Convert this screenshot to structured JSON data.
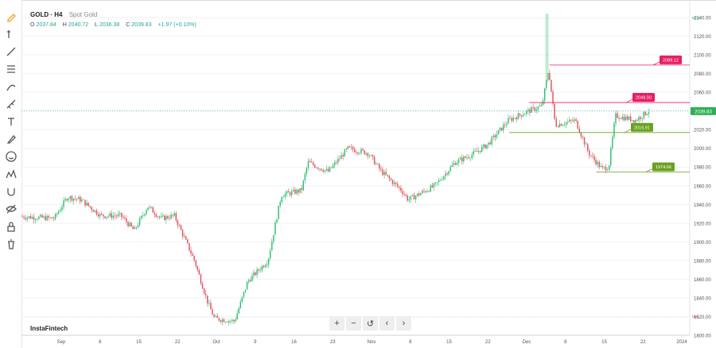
{
  "legend": {
    "symbol": "GOLD · H4",
    "description": "Spot Gold"
  },
  "ohlc": {
    "o_label": "O",
    "o_value": "2037.84",
    "h_label": "H",
    "h_value": "2040.72",
    "l_label": "L",
    "l_value": "2036.38",
    "c_label": "C",
    "c_value": "2039.83",
    "change": "+1.97 (+0.10%)"
  },
  "watermark": "InstaFintech",
  "nav": {
    "zoom_in": "+",
    "zoom_out": "−",
    "reset": "↺",
    "back": "‹",
    "forward": "›"
  },
  "toolbar_icons": [
    "pencil-icon",
    "cursor-icon",
    "trend-line-icon",
    "fibonacci-icon",
    "brush-icon",
    "measure-icon",
    "text-icon",
    "pen-icon",
    "emoji-icon",
    "pattern-icon",
    "magnet-icon",
    "hide-drawings-icon",
    "lock-icon",
    "trash-icon"
  ],
  "colors": {
    "up": "#26a69a",
    "up_fill": "#2fbf71",
    "down": "#e0525d",
    "resistance": "#e91e63",
    "support": "#6aa121",
    "current": "#26a69a",
    "grid": "#f2f2f2",
    "axis_text": "#555555"
  },
  "chart_data": {
    "type": "candlestick",
    "ylim": [
      1800,
      2140
    ],
    "yticks": [
      1800,
      1820,
      1840,
      1860,
      1880,
      1900,
      1920,
      1940,
      1960,
      1980,
      2000,
      2020,
      2040,
      2060,
      2080,
      2100,
      2120,
      2140
    ],
    "xticks": [
      "Sep",
      "8",
      "15",
      "22",
      "Oct",
      "9",
      "16",
      "23",
      "Nov",
      "8",
      "15",
      "22",
      "Dec",
      "8",
      "15",
      "22",
      "2024"
    ],
    "xlabel": "",
    "ylabel": "",
    "max_marker": "MAX",
    "min_marker": "MIN",
    "path": [
      {
        "t": 0.0,
        "v": 1927
      },
      {
        "t": 0.05,
        "v": 1925
      },
      {
        "t": 0.07,
        "v": 1948
      },
      {
        "t": 0.09,
        "v": 1945
      },
      {
        "t": 0.12,
        "v": 1928
      },
      {
        "t": 0.15,
        "v": 1928
      },
      {
        "t": 0.17,
        "v": 1912
      },
      {
        "t": 0.19,
        "v": 1938
      },
      {
        "t": 0.21,
        "v": 1925
      },
      {
        "t": 0.23,
        "v": 1928
      },
      {
        "t": 0.26,
        "v": 1880
      },
      {
        "t": 0.28,
        "v": 1835
      },
      {
        "t": 0.29,
        "v": 1818
      },
      {
        "t": 0.32,
        "v": 1815
      },
      {
        "t": 0.34,
        "v": 1858
      },
      {
        "t": 0.37,
        "v": 1880
      },
      {
        "t": 0.39,
        "v": 1950
      },
      {
        "t": 0.42,
        "v": 1955
      },
      {
        "t": 0.43,
        "v": 1985
      },
      {
        "t": 0.46,
        "v": 1975
      },
      {
        "t": 0.49,
        "v": 2000
      },
      {
        "t": 0.52,
        "v": 1995
      },
      {
        "t": 0.54,
        "v": 1975
      },
      {
        "t": 0.57,
        "v": 1955
      },
      {
        "t": 0.58,
        "v": 1945
      },
      {
        "t": 0.62,
        "v": 1960
      },
      {
        "t": 0.65,
        "v": 1985
      },
      {
        "t": 0.68,
        "v": 1995
      },
      {
        "t": 0.7,
        "v": 2005
      },
      {
        "t": 0.73,
        "v": 2030
      },
      {
        "t": 0.76,
        "v": 2040
      },
      {
        "t": 0.78,
        "v": 2045
      },
      {
        "t": 0.79,
        "v": 2085
      },
      {
        "t": 0.8,
        "v": 2025
      },
      {
        "t": 0.83,
        "v": 2030
      },
      {
        "t": 0.85,
        "v": 1995
      },
      {
        "t": 0.87,
        "v": 1978
      },
      {
        "t": 0.88,
        "v": 1980
      },
      {
        "t": 0.89,
        "v": 2035
      },
      {
        "t": 0.92,
        "v": 2030
      },
      {
        "t": 0.94,
        "v": 2040
      }
    ],
    "spike": {
      "t": 0.785,
      "high": 2144
    },
    "levels": [
      {
        "value": 2089.12,
        "label": "2089.12",
        "kind": "resistance",
        "from": 0.79
      },
      {
        "value": 2049.0,
        "label": "2049.00",
        "kind": "resistance",
        "from": 0.76
      },
      {
        "value": 2016.91,
        "label": "2016.91",
        "kind": "support",
        "from": 0.73
      },
      {
        "value": 1974.66,
        "label": "1974.66",
        "kind": "support",
        "from": 0.86
      }
    ],
    "current_price": {
      "value": 2039.83,
      "label": "2039.83"
    }
  }
}
